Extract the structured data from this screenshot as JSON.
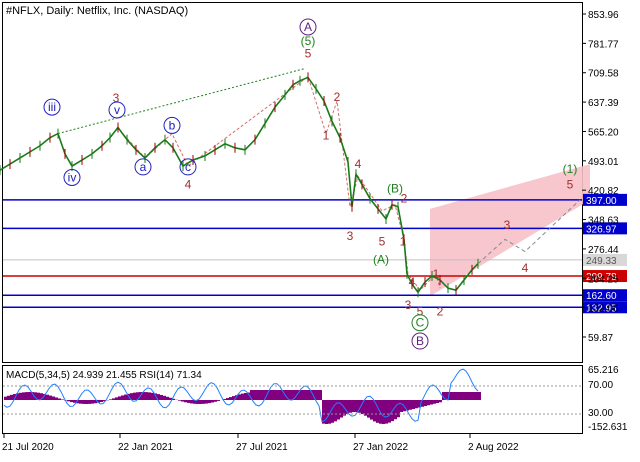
{
  "chart_data": {
    "type": "line",
    "title": "#NFLX, Daily:  Netflix, Inc. (NASDAQ)",
    "indicator_label": "MACD(5,34,5) 24.939 21.455 RSI(14) 71.34",
    "x_ticks": [
      "21 Jul 2020",
      "22 Jan 2021",
      "27 Jul 2021",
      "27 Jan 2022",
      "2 Aug 2022"
    ],
    "y_ticks": [
      "853.96",
      "781.77",
      "709.58",
      "637.39",
      "565.20",
      "493.01",
      "420.82",
      "348.63",
      "276.44",
      "204.25",
      "132.06",
      "59.87"
    ],
    "ylim": [
      59.87,
      853.96
    ],
    "levels": [
      {
        "label": "397.00",
        "value": 397.0,
        "color": "#0000cc"
      },
      {
        "label": "326.97",
        "value": 326.97,
        "color": "#0000cc"
      },
      {
        "label": "249.33",
        "value": 249.33,
        "color": "#c0c0c0"
      },
      {
        "label": "209.78",
        "value": 209.78,
        "color": "#cc0000"
      },
      {
        "label": "162.60",
        "value": 162.6,
        "color": "#0000cc"
      },
      {
        "label": "132.95",
        "value": 132.95,
        "color": "#0000cc"
      }
    ],
    "indicator_ticks": [
      "65.216",
      "70.00",
      "30.00",
      "-152.631"
    ],
    "price_series": [
      {
        "x": 0,
        "y": 470
      },
      {
        "x": 10,
        "y": 485
      },
      {
        "x": 20,
        "y": 500
      },
      {
        "x": 30,
        "y": 515
      },
      {
        "x": 40,
        "y": 530
      },
      {
        "x": 50,
        "y": 550
      },
      {
        "x": 58,
        "y": 560
      },
      {
        "x": 65,
        "y": 510
      },
      {
        "x": 72,
        "y": 480
      },
      {
        "x": 82,
        "y": 495
      },
      {
        "x": 92,
        "y": 510
      },
      {
        "x": 102,
        "y": 530
      },
      {
        "x": 110,
        "y": 550
      },
      {
        "x": 118,
        "y": 575
      },
      {
        "x": 127,
        "y": 545
      },
      {
        "x": 136,
        "y": 520
      },
      {
        "x": 145,
        "y": 500
      },
      {
        "x": 155,
        "y": 525
      },
      {
        "x": 165,
        "y": 545
      },
      {
        "x": 173,
        "y": 525
      },
      {
        "x": 183,
        "y": 480
      },
      {
        "x": 193,
        "y": 495
      },
      {
        "x": 205,
        "y": 505
      },
      {
        "x": 215,
        "y": 520
      },
      {
        "x": 225,
        "y": 535
      },
      {
        "x": 235,
        "y": 525
      },
      {
        "x": 245,
        "y": 520
      },
      {
        "x": 255,
        "y": 545
      },
      {
        "x": 265,
        "y": 585
      },
      {
        "x": 275,
        "y": 625
      },
      {
        "x": 285,
        "y": 655
      },
      {
        "x": 293,
        "y": 680
      },
      {
        "x": 300,
        "y": 690
      },
      {
        "x": 308,
        "y": 698
      },
      {
        "x": 316,
        "y": 670
      },
      {
        "x": 324,
        "y": 640
      },
      {
        "x": 332,
        "y": 590
      },
      {
        "x": 340,
        "y": 550
      },
      {
        "x": 348,
        "y": 490
      },
      {
        "x": 352,
        "y": 380
      },
      {
        "x": 356,
        "y": 460
      },
      {
        "x": 362,
        "y": 435
      },
      {
        "x": 370,
        "y": 400
      },
      {
        "x": 378,
        "y": 375
      },
      {
        "x": 386,
        "y": 350
      },
      {
        "x": 392,
        "y": 385
      },
      {
        "x": 398,
        "y": 380
      },
      {
        "x": 404,
        "y": 300
      },
      {
        "x": 407,
        "y": 215
      },
      {
        "x": 412,
        "y": 190
      },
      {
        "x": 418,
        "y": 170
      },
      {
        "x": 425,
        "y": 195
      },
      {
        "x": 432,
        "y": 210
      },
      {
        "x": 440,
        "y": 200
      },
      {
        "x": 448,
        "y": 180
      },
      {
        "x": 456,
        "y": 175
      },
      {
        "x": 464,
        "y": 200
      },
      {
        "x": 472,
        "y": 225
      },
      {
        "x": 478,
        "y": 240
      }
    ],
    "forecast_series": [
      {
        "x": 478,
        "y": 240
      },
      {
        "x": 505,
        "y": 300
      },
      {
        "x": 525,
        "y": 270
      },
      {
        "x": 580,
        "y": 397
      }
    ],
    "forecast_channel": [
      {
        "x": 430,
        "y": 375
      },
      {
        "x": 590,
        "y": 485
      },
      {
        "x": 590,
        "y": 397
      },
      {
        "x": 430,
        "y": 160
      }
    ],
    "wave_labels": [
      {
        "text": "iii",
        "x": 52,
        "y": 625,
        "circled": true,
        "color": "#2020c0"
      },
      {
        "text": "iv",
        "x": 72,
        "y": 452,
        "circled": true,
        "color": "#2020c0"
      },
      {
        "text": "v",
        "x": 117,
        "y": 618,
        "circled": true,
        "color": "#2020c0"
      },
      {
        "text": "3",
        "x": 116,
        "y": 648,
        "circled": false,
        "color": "#a03030"
      },
      {
        "text": "a",
        "x": 143,
        "y": 478,
        "circled": true,
        "color": "#2020c0"
      },
      {
        "text": "b",
        "x": 172,
        "y": 580,
        "circled": true,
        "color": "#2020c0"
      },
      {
        "text": "c",
        "x": 188,
        "y": 478,
        "circled": true,
        "color": "#2020c0"
      },
      {
        "text": "4",
        "x": 188,
        "y": 435,
        "circled": false,
        "color": "#a03030"
      },
      {
        "text": "A",
        "x": 308,
        "y": 822,
        "circled": true,
        "color": "#602080"
      },
      {
        "text": "(5)",
        "x": 308,
        "y": 788,
        "circled": false,
        "color": "#208020"
      },
      {
        "text": "5",
        "x": 308,
        "y": 757,
        "circled": false,
        "color": "#a03030"
      },
      {
        "text": "2",
        "x": 337,
        "y": 650,
        "circled": false,
        "color": "#a03030"
      },
      {
        "text": "1",
        "x": 326,
        "y": 555,
        "circled": false,
        "color": "#a03030"
      },
      {
        "text": "4",
        "x": 358,
        "y": 485,
        "circled": false,
        "color": "#a03030"
      },
      {
        "text": "3",
        "x": 350,
        "y": 308,
        "circled": false,
        "color": "#a03030"
      },
      {
        "text": "(B)",
        "x": 395,
        "y": 425,
        "circled": false,
        "color": "#208020"
      },
      {
        "text": "2",
        "x": 404,
        "y": 400,
        "circled": false,
        "color": "#a03030"
      },
      {
        "text": "5",
        "x": 382,
        "y": 295,
        "circled": false,
        "color": "#a03030"
      },
      {
        "text": "1",
        "x": 403,
        "y": 295,
        "circled": false,
        "color": "#a03030"
      },
      {
        "text": "(A)",
        "x": 381,
        "y": 250,
        "circled": false,
        "color": "#208020"
      },
      {
        "text": "4",
        "x": 412,
        "y": 195,
        "circled": false,
        "color": "#a03030"
      },
      {
        "text": "1",
        "x": 436,
        "y": 215,
        "circled": false,
        "color": "#a03030"
      },
      {
        "text": "3",
        "x": 408,
        "y": 138,
        "circled": false,
        "color": "#a03030"
      },
      {
        "text": "5",
        "x": 420,
        "y": 122,
        "circled": false,
        "color": "#a03030"
      },
      {
        "text": "2",
        "x": 440,
        "y": 122,
        "circled": false,
        "color": "#a03030"
      },
      {
        "text": "C",
        "x": 420,
        "y": 95,
        "circled": true,
        "color": "#208020"
      },
      {
        "text": "B",
        "x": 420,
        "y": 50,
        "circled": true,
        "color": "#602080"
      },
      {
        "text": "3",
        "x": 507,
        "y": 335,
        "circled": false,
        "color": "#a03030"
      },
      {
        "text": "4",
        "x": 525,
        "y": 230,
        "circled": false,
        "color": "#a03030"
      },
      {
        "text": "(1)",
        "x": 570,
        "y": 473,
        "circled": false,
        "color": "#208020"
      },
      {
        "text": "5",
        "x": 570,
        "y": 435,
        "circled": false,
        "color": "#a03030"
      }
    ],
    "grid": true
  }
}
